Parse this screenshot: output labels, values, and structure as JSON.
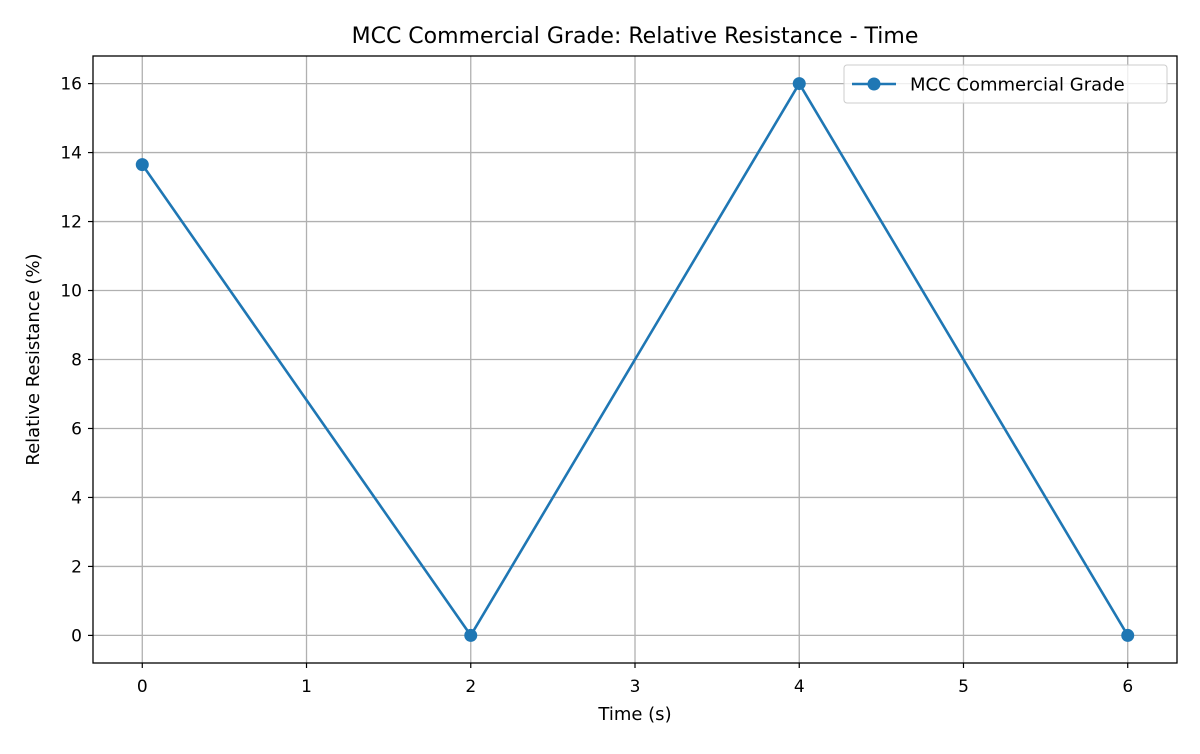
{
  "chart_data": {
    "type": "line",
    "title": "MCC Commercial Grade: Relative Resistance - Time",
    "xlabel": "Time (s)",
    "ylabel": "Relative Resistance (%)",
    "xlim": [
      -0.3,
      6.3
    ],
    "ylim": [
      -0.8,
      16.8
    ],
    "xticks": [
      0,
      1,
      2,
      3,
      4,
      5,
      6
    ],
    "yticks": [
      0,
      2,
      4,
      6,
      8,
      10,
      12,
      14,
      16
    ],
    "grid": true,
    "legend_position": "top-right",
    "series": [
      {
        "name": "MCC Commercial Grade",
        "color": "#1f77b4",
        "marker": "circle",
        "x": [
          0,
          2,
          4,
          6
        ],
        "y": [
          13.65,
          0,
          16,
          0
        ]
      }
    ]
  }
}
